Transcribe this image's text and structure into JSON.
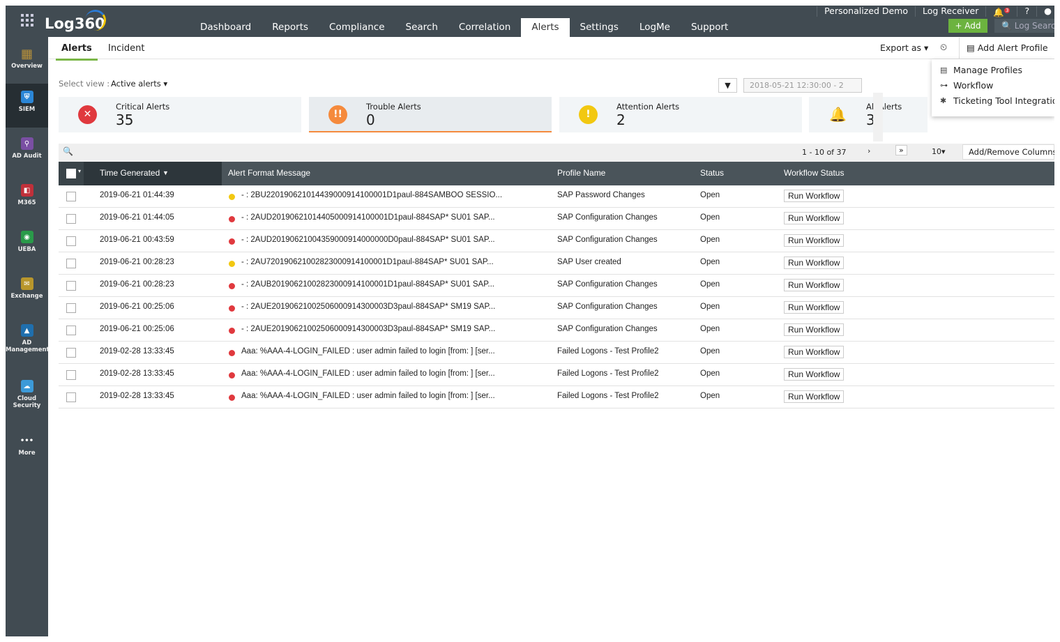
{
  "header": {
    "logo": "Log360",
    "nav": [
      "Dashboard",
      "Reports",
      "Compliance",
      "Search",
      "Correlation",
      "Alerts",
      "Settings",
      "LogMe",
      "Support"
    ],
    "active_nav": "Alerts",
    "top_links": [
      "Personalized Demo",
      "Log Receiver"
    ],
    "notification_count": "3",
    "help": "?",
    "add_label": "+ Add",
    "search_placeholder": "Log Search"
  },
  "sidebar": {
    "items": [
      {
        "label": "Overview",
        "color": "#b8913a"
      },
      {
        "label": "SIEM",
        "color": "#2b86d6"
      },
      {
        "label": "AD Audit",
        "color": "#7a4fa3"
      },
      {
        "label": "M365",
        "color": "#c0303a"
      },
      {
        "label": "UEBA",
        "color": "#2a9a4a"
      },
      {
        "label": "Exchange",
        "color": "#b8962c"
      },
      {
        "label": "AD Management",
        "color": "#1f6fae"
      },
      {
        "label": "Cloud Security",
        "color": "#3c9ad8"
      },
      {
        "label": "More",
        "color": "#414b52"
      }
    ]
  },
  "tabs": {
    "alerts": "Alerts",
    "incident": "Incident"
  },
  "toolbar": {
    "export": "Export as",
    "add_profile": "Add Alert Profile"
  },
  "menu": {
    "items": [
      "Manage Profiles",
      "Workflow",
      "Ticketing Tool Integration"
    ]
  },
  "view": {
    "label": "Select view :",
    "value": "Active alerts"
  },
  "date_range": "2018-05-21 12:30:00 - 2",
  "cards": [
    {
      "label": "Critical Alerts",
      "value": "35",
      "color": "#e0393e"
    },
    {
      "label": "Trouble Alerts",
      "value": "0",
      "color": "#f58a3c"
    },
    {
      "label": "Attention Alerts",
      "value": "2",
      "color": "#f2c811"
    },
    {
      "label": "All Alerts",
      "value": "3",
      "color": "#2596d1"
    }
  ],
  "pagination": {
    "range": "1 - 10 of 37",
    "page_size": "10",
    "columns_btn": "Add/Remove Columns"
  },
  "table": {
    "headers": [
      "Time Generated",
      "Alert Format Message",
      "Profile Name",
      "Status",
      "Workflow Status"
    ],
    "rows": [
      {
        "time": "2019-06-21 01:44:39",
        "sev": "#f2c811",
        "msg": "- : 2BU220190621014439000914100001D1paul-884SAMBOO SESSIO...",
        "profile": "SAP Password Changes",
        "status": "Open",
        "action": "Run Workflow"
      },
      {
        "time": "2019-06-21 01:44:05",
        "sev": "#e0393e",
        "msg": "- : 2AUD20190621014405000914100001D1paul-884SAP* SU01 SAP...",
        "profile": "SAP Configuration Changes",
        "status": "Open",
        "action": "Run Workflow"
      },
      {
        "time": "2019-06-21 00:43:59",
        "sev": "#e0393e",
        "msg": "- : 2AUD20190621004359000914000000D0paul-884SAP* SU01 SAP...",
        "profile": "SAP Configuration Changes",
        "status": "Open",
        "action": "Run Workflow"
      },
      {
        "time": "2019-06-21 00:28:23",
        "sev": "#f2c811",
        "msg": "- : 2AU720190621002823000914100001D1paul-884SAP* SU01 SAP...",
        "profile": "SAP User created",
        "status": "Open",
        "action": "Run Workflow"
      },
      {
        "time": "2019-06-21 00:28:23",
        "sev": "#e0393e",
        "msg": "- : 2AUB20190621002823000914100001D1paul-884SAP* SU01 SAP...",
        "profile": "SAP Configuration Changes",
        "status": "Open",
        "action": "Run Workflow"
      },
      {
        "time": "2019-06-21 00:25:06",
        "sev": "#e0393e",
        "msg": "- : 2AUE20190621002506000914300003D3paul-884SAP* SM19 SAP...",
        "profile": "SAP Configuration Changes",
        "status": "Open",
        "action": "Run Workflow"
      },
      {
        "time": "2019-06-21 00:25:06",
        "sev": "#e0393e",
        "msg": "- : 2AUE20190621002506000914300003D3paul-884SAP* SM19 SAP...",
        "profile": "SAP Configuration Changes",
        "status": "Open",
        "action": "Run Workflow"
      },
      {
        "time": "2019-02-28 13:33:45",
        "sev": "#e0393e",
        "msg": "Aaa: %AAA-4-LOGIN_FAILED : user admin failed to login [from: ] [ser...",
        "profile": "Failed Logons - Test Profile2",
        "status": "Open",
        "action": "Run Workflow"
      },
      {
        "time": "2019-02-28 13:33:45",
        "sev": "#e0393e",
        "msg": "Aaa: %AAA-4-LOGIN_FAILED : user admin failed to login [from: ] [ser...",
        "profile": "Failed Logons - Test Profile2",
        "status": "Open",
        "action": "Run Workflow"
      },
      {
        "time": "2019-02-28 13:33:45",
        "sev": "#e0393e",
        "msg": "Aaa: %AAA-4-LOGIN_FAILED : user admin failed to login [from: ] [ser...",
        "profile": "Failed Logons - Test Profile2",
        "status": "Open",
        "action": "Run Workflow"
      }
    ]
  }
}
